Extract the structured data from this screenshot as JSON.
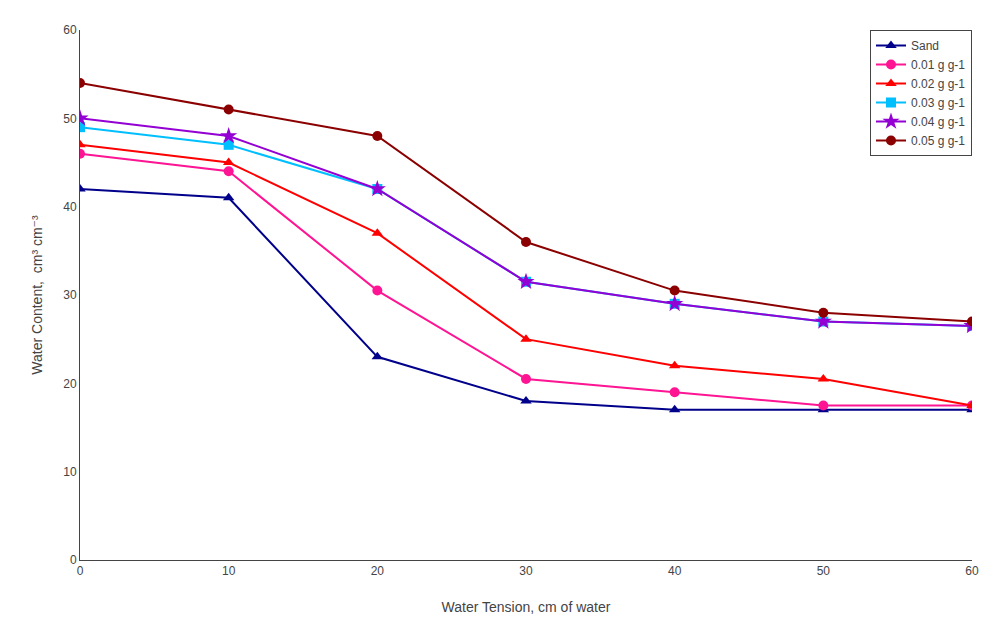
{
  "chart_data": {
    "type": "line",
    "x": [
      0,
      10,
      20,
      30,
      40,
      50,
      60
    ],
    "series": [
      {
        "name": "Sand",
        "color": "#00008B",
        "marker": "triangle",
        "values": [
          42,
          41,
          23,
          18,
          17,
          17,
          17
        ]
      },
      {
        "name": "0.01 g g-1",
        "color": "#FF1493",
        "marker": "circle",
        "values": [
          46,
          44,
          30.5,
          20.5,
          19,
          17.5,
          17.5
        ]
      },
      {
        "name": "0.02 g g-1",
        "color": "#FF0000",
        "marker": "triangle",
        "values": [
          47,
          45,
          37,
          25,
          22,
          20.5,
          17.5
        ]
      },
      {
        "name": "0.03 g g-1",
        "color": "#00BFFF",
        "marker": "square",
        "values": [
          49,
          47,
          42,
          31.5,
          29,
          27,
          26.5
        ]
      },
      {
        "name": "0.04 g g-1",
        "color": "#9400D3",
        "marker": "star",
        "values": [
          50,
          48,
          42,
          31.5,
          29,
          27,
          26.5
        ]
      },
      {
        "name": "0.05 g g-1",
        "color": "#8B0000",
        "marker": "circle",
        "values": [
          54,
          51,
          48,
          36,
          30.5,
          28,
          27
        ]
      }
    ],
    "x_label": "Water Tension, cm of water",
    "y_label": "Water Content,  cm³ cm⁻³",
    "xlim": [
      0,
      60
    ],
    "ylim": [
      0,
      60
    ],
    "xticks": [
      0,
      10,
      20,
      30,
      40,
      50,
      60
    ],
    "yticks": [
      0,
      10,
      20,
      30,
      40,
      50,
      60
    ],
    "grid": false,
    "legend": "upper right"
  }
}
